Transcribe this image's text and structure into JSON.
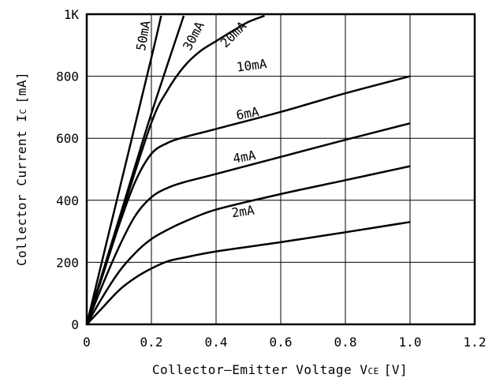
{
  "chart_data": {
    "type": "line",
    "title": "",
    "xlabel": "Collector–Emitter Voltage V",
    "xlabel_sub": "CE",
    "xlabel_unit": "[V]",
    "ylabel": "Collector Current I",
    "ylabel_sub": "C",
    "ylabel_unit": "[mA]",
    "xlim": [
      0,
      1.2
    ],
    "ylim": [
      0,
      1000
    ],
    "grid": true,
    "x_ticks": [
      {
        "value": 0,
        "label": "0"
      },
      {
        "value": 0.2,
        "label": "0.2"
      },
      {
        "value": 0.4,
        "label": "0.4"
      },
      {
        "value": 0.6,
        "label": "0.6"
      },
      {
        "value": 0.8,
        "label": "0.8"
      },
      {
        "value": 1.0,
        "label": "1.0"
      },
      {
        "value": 1.2,
        "label": "1.2"
      }
    ],
    "y_ticks": [
      {
        "value": 0,
        "label": "0"
      },
      {
        "value": 200,
        "label": "200"
      },
      {
        "value": 400,
        "label": "400"
      },
      {
        "value": 600,
        "label": "600"
      },
      {
        "value": 800,
        "label": "800"
      },
      {
        "value": 1000,
        "label": "1K"
      }
    ],
    "series": [
      {
        "name": "2mA",
        "x": [
          0,
          0.05,
          0.1,
          0.15,
          0.2,
          0.25,
          0.3,
          0.4,
          0.6,
          0.8,
          1.0
        ],
        "y": [
          0,
          55,
          110,
          150,
          180,
          203,
          215,
          235,
          265,
          297,
          330
        ],
        "label_x": 0.45,
        "label_y": 345,
        "label_angle": -8
      },
      {
        "name": "4mA",
        "x": [
          0,
          0.05,
          0.1,
          0.15,
          0.2,
          0.25,
          0.3,
          0.4,
          0.6,
          0.8,
          1.0
        ],
        "y": [
          0,
          90,
          170,
          230,
          275,
          305,
          330,
          370,
          420,
          465,
          510
        ],
        "label_x": 0.455,
        "label_y": 520,
        "label_angle": -10
      },
      {
        "name": "6mA",
        "x": [
          0,
          0.05,
          0.1,
          0.15,
          0.2,
          0.25,
          0.3,
          0.4,
          0.6,
          0.8,
          1.0
        ],
        "y": [
          0,
          130,
          250,
          350,
          410,
          440,
          458,
          485,
          540,
          595,
          648
        ],
        "label_x": 0.465,
        "label_y": 660,
        "label_angle": -10
      },
      {
        "name": "10mA",
        "x": [
          0,
          0.05,
          0.1,
          0.15,
          0.2,
          0.25,
          0.3,
          0.4,
          0.6,
          0.8,
          1.0
        ],
        "y": [
          0,
          160,
          320,
          460,
          550,
          585,
          603,
          630,
          685,
          745,
          800
        ],
        "label_x": 0.465,
        "label_y": 815,
        "label_angle": -7
      },
      {
        "name": "20mA",
        "x": [
          0,
          0.1,
          0.2,
          0.25,
          0.3,
          0.35,
          0.4,
          0.45,
          0.5,
          0.55
        ],
        "y": [
          0,
          330,
          650,
          755,
          830,
          880,
          913,
          945,
          975,
          995
        ],
        "label_x": 0.43,
        "label_y": 890,
        "label_angle": -45
      },
      {
        "name": "30mA",
        "x": [
          0,
          0.1,
          0.2,
          0.3
        ],
        "y": [
          0,
          340,
          680,
          995
        ],
        "label_x": 0.32,
        "label_y": 880,
        "label_angle": -62
      },
      {
        "name": "50mA",
        "x": [
          0,
          0.1,
          0.2,
          0.23
        ],
        "y": [
          0,
          430,
          860,
          995
        ],
        "label_x": 0.18,
        "label_y": 880,
        "label_angle": -80
      }
    ]
  }
}
